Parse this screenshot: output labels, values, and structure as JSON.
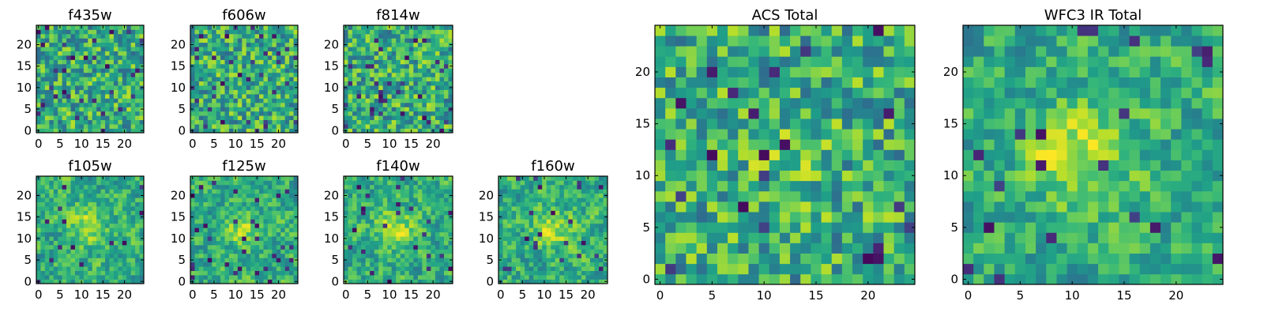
{
  "figure": {
    "description_note": "",
    "colormap": "viridis",
    "frame_color": "#000000"
  },
  "chart_data": [
    {
      "type": "heatmap",
      "title": "f435w",
      "x_range": [
        0,
        24
      ],
      "y_range": [
        0,
        24
      ],
      "xticks": [
        "0",
        "5",
        "10",
        "15",
        "20"
      ],
      "yticks": [
        "0",
        "5",
        "10",
        "15",
        "20"
      ],
      "value_range": [
        0,
        1
      ],
      "seed": 11,
      "smoothness": 0,
      "blob": null,
      "low_prob": 0.05
    },
    {
      "type": "heatmap",
      "title": "f606w",
      "x_range": [
        0,
        24
      ],
      "y_range": [
        0,
        24
      ],
      "xticks": [
        "0",
        "5",
        "10",
        "15",
        "20"
      ],
      "yticks": [
        "0",
        "5",
        "10",
        "15",
        "20"
      ],
      "value_range": [
        0,
        1
      ],
      "seed": 23,
      "smoothness": 0,
      "blob": null,
      "low_prob": 0.05
    },
    {
      "type": "heatmap",
      "title": "f814w",
      "x_range": [
        0,
        24
      ],
      "y_range": [
        0,
        24
      ],
      "xticks": [
        "0",
        "5",
        "10",
        "15",
        "20"
      ],
      "yticks": [
        "0",
        "5",
        "10",
        "15",
        "20"
      ],
      "value_range": [
        0,
        1
      ],
      "seed": 37,
      "smoothness": 0,
      "blob": null,
      "low_prob": 0.05
    },
    {
      "type": "heatmap",
      "title": "f105w",
      "x_range": [
        0,
        24
      ],
      "y_range": [
        0,
        24
      ],
      "xticks": [
        "0",
        "5",
        "10",
        "15",
        "20"
      ],
      "yticks": [
        "0",
        "5",
        "10",
        "15",
        "20"
      ],
      "value_range": [
        0,
        1
      ],
      "seed": 41,
      "smoothness": 1,
      "blob": [
        12,
        13,
        0.25
      ],
      "low_prob": 0.03
    },
    {
      "type": "heatmap",
      "title": "f125w",
      "x_range": [
        0,
        24
      ],
      "y_range": [
        0,
        24
      ],
      "xticks": [
        "0",
        "5",
        "10",
        "15",
        "20"
      ],
      "yticks": [
        "0",
        "5",
        "10",
        "15",
        "20"
      ],
      "value_range": [
        0,
        1
      ],
      "seed": 53,
      "smoothness": 1,
      "blob": [
        12,
        12,
        0.2
      ],
      "low_prob": 0.04
    },
    {
      "type": "heatmap",
      "title": "f140w",
      "x_range": [
        0,
        24
      ],
      "y_range": [
        0,
        24
      ],
      "xticks": [
        "0",
        "5",
        "10",
        "15",
        "20"
      ],
      "yticks": [
        "0",
        "5",
        "10",
        "15",
        "20"
      ],
      "value_range": [
        0,
        1
      ],
      "seed": 67,
      "smoothness": 1,
      "blob": [
        12,
        13,
        0.25
      ],
      "low_prob": 0.03
    },
    {
      "type": "heatmap",
      "title": "f160w",
      "x_range": [
        0,
        24
      ],
      "y_range": [
        0,
        24
      ],
      "xticks": [
        "0",
        "5",
        "10",
        "15",
        "20"
      ],
      "yticks": [
        "0",
        "5",
        "10",
        "15",
        "20"
      ],
      "value_range": [
        0,
        1
      ],
      "seed": 79,
      "smoothness": 1,
      "blob": [
        12,
        12,
        0.3
      ],
      "low_prob": 0.03
    },
    {
      "type": "heatmap",
      "title": "ACS Total",
      "x_range": [
        0,
        24
      ],
      "y_range": [
        0,
        24
      ],
      "xticks": [
        "0",
        "5",
        "10",
        "15",
        "20"
      ],
      "yticks": [
        "0",
        "5",
        "10",
        "15",
        "20"
      ],
      "value_range": [
        0,
        1
      ],
      "seed": 97,
      "smoothness": 0,
      "blob": [
        12,
        12,
        0.12
      ],
      "low_prob": 0.04
    },
    {
      "type": "heatmap",
      "title": "WFC3 IR Total",
      "x_range": [
        0,
        24
      ],
      "y_range": [
        0,
        24
      ],
      "xticks": [
        "0",
        "5",
        "10",
        "15",
        "20"
      ],
      "yticks": [
        "0",
        "5",
        "10",
        "15",
        "20"
      ],
      "value_range": [
        0,
        1
      ],
      "seed": 103,
      "smoothness": 1,
      "blob": [
        11,
        12,
        0.35
      ],
      "low_prob": 0.03
    }
  ]
}
